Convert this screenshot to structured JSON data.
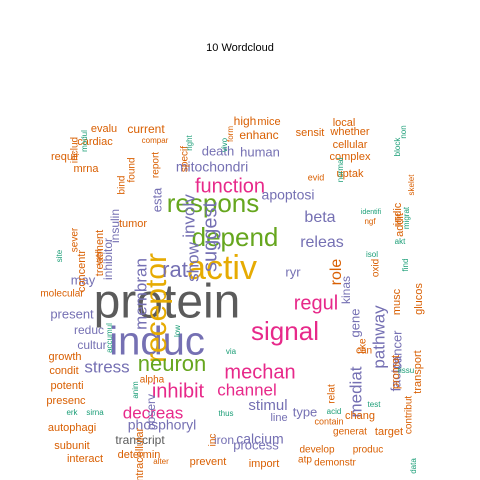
{
  "title": "10  Wordcloud",
  "colors": {
    "c1": "#5b5b5b",
    "c2": "#d95f02",
    "c3": "#7570b3",
    "c4": "#e7298a",
    "c5": "#66a61e",
    "c6": "#e6ab02",
    "c7": "#1b9e77",
    "c8": "#a6761d"
  },
  "words": [
    {
      "text": "protein",
      "size": 48,
      "color": "#5b5b5b"
    },
    {
      "text": "induc",
      "size": 40,
      "color": "#7570b3"
    },
    {
      "text": "activ",
      "size": 34,
      "color": "#e6ab02"
    },
    {
      "text": "receptor",
      "size": 30,
      "color": "#e6ab02"
    },
    {
      "text": "respons",
      "size": 26,
      "color": "#66a61e"
    },
    {
      "text": "depend",
      "size": 26,
      "color": "#66a61e"
    },
    {
      "text": "signal",
      "size": 26,
      "color": "#e7298a"
    },
    {
      "text": "neuron",
      "size": 22,
      "color": "#66a61e"
    },
    {
      "text": "rat",
      "size": 22,
      "color": "#7570b3"
    },
    {
      "text": "suggest",
      "size": 20,
      "color": "#7570b3"
    },
    {
      "text": "function",
      "size": 20,
      "color": "#e7298a"
    },
    {
      "text": "inhibit",
      "size": 20,
      "color": "#e7298a"
    },
    {
      "text": "mechan",
      "size": 20,
      "color": "#e7298a"
    },
    {
      "text": "regul",
      "size": 20,
      "color": "#e7298a"
    },
    {
      "text": "stress",
      "size": 17,
      "color": "#7570b3"
    },
    {
      "text": "decreas",
      "size": 17,
      "color": "#e7298a"
    },
    {
      "text": "channel",
      "size": 17,
      "color": "#e7298a"
    },
    {
      "text": "pathway",
      "size": 17,
      "color": "#7570b3"
    },
    {
      "text": "membran",
      "size": 17,
      "color": "#7570b3"
    },
    {
      "text": "mediat",
      "size": 17,
      "color": "#7570b3"
    },
    {
      "text": "show",
      "size": 17,
      "color": "#7570b3"
    },
    {
      "text": "involv",
      "size": 17,
      "color": "#7570b3"
    },
    {
      "text": "releas",
      "size": 16,
      "color": "#7570b3"
    },
    {
      "text": "beta",
      "size": 16,
      "color": "#7570b3"
    },
    {
      "text": "role",
      "size": 16,
      "color": "#d95f02"
    },
    {
      "text": "stimul",
      "size": 15,
      "color": "#7570b3"
    },
    {
      "text": "phosphoryl",
      "size": 14,
      "color": "#7570b3"
    },
    {
      "text": "mitochondri",
      "size": 14,
      "color": "#7570b3"
    },
    {
      "text": "apoptosi",
      "size": 14,
      "color": "#7570b3"
    },
    {
      "text": "factor",
      "size": 14,
      "color": "#7570b3"
    },
    {
      "text": "calcium",
      "size": 14,
      "color": "#7570b3"
    },
    {
      "text": "human",
      "size": 13,
      "color": "#7570b3"
    },
    {
      "text": "gene",
      "size": 13,
      "color": "#7570b3"
    },
    {
      "text": "present",
      "size": 13,
      "color": "#7570b3"
    },
    {
      "text": "may",
      "size": 13,
      "color": "#7570b3"
    },
    {
      "text": "death",
      "size": 13,
      "color": "#7570b3"
    },
    {
      "text": "cancer",
      "size": 13,
      "color": "#7570b3"
    },
    {
      "text": "process",
      "size": 13,
      "color": "#7570b3"
    },
    {
      "text": "type",
      "size": 13,
      "color": "#7570b3"
    },
    {
      "text": "ryr",
      "size": 13,
      "color": "#7570b3"
    },
    {
      "text": "inhibitor",
      "size": 12,
      "color": "#7570b3"
    },
    {
      "text": "insulin",
      "size": 12,
      "color": "#7570b3"
    },
    {
      "text": "esta",
      "size": 13,
      "color": "#7570b3"
    },
    {
      "text": "kinas",
      "size": 12,
      "color": "#7570b3"
    },
    {
      "text": "reduc",
      "size": 12,
      "color": "#7570b3"
    },
    {
      "text": "cultur",
      "size": 12,
      "color": "#7570b3"
    },
    {
      "text": "observ",
      "size": 12,
      "color": "#7570b3"
    },
    {
      "text": "transcript",
      "size": 12,
      "color": "#5b5b5b"
    },
    {
      "text": "enhanc",
      "size": 12,
      "color": "#d95f02"
    },
    {
      "text": "iron",
      "size": 12,
      "color": "#7570b3"
    },
    {
      "text": "line",
      "size": 11,
      "color": "#7570b3"
    },
    {
      "text": "prevent",
      "size": 11,
      "color": "#d95f02"
    },
    {
      "text": "import",
      "size": 11,
      "color": "#d95f02"
    },
    {
      "text": "develop",
      "size": 10,
      "color": "#d95f02"
    },
    {
      "text": "produc",
      "size": 10,
      "color": "#d95f02"
    },
    {
      "text": "determin",
      "size": 11,
      "color": "#d95f02"
    },
    {
      "text": "interact",
      "size": 11,
      "color": "#d95f02"
    },
    {
      "text": "subunit",
      "size": 11,
      "color": "#d95f02"
    },
    {
      "text": "autophagi",
      "size": 11,
      "color": "#d95f02"
    },
    {
      "text": "presenc",
      "size": 11,
      "color": "#d95f02"
    },
    {
      "text": "potenti",
      "size": 11,
      "color": "#d95f02"
    },
    {
      "text": "condit",
      "size": 11,
      "color": "#d95f02"
    },
    {
      "text": "growth",
      "size": 11,
      "color": "#d95f02"
    },
    {
      "text": "molecular",
      "size": 10,
      "color": "#d95f02"
    },
    {
      "text": "treatment",
      "size": 11,
      "color": "#d95f02"
    },
    {
      "text": "concentr",
      "size": 11,
      "color": "#d95f02"
    },
    {
      "text": "sever",
      "size": 10,
      "color": "#d95f02"
    },
    {
      "text": "mrna",
      "size": 11,
      "color": "#d95f02"
    },
    {
      "text": "requir",
      "size": 11,
      "color": "#d95f02"
    },
    {
      "text": "cardiac",
      "size": 11,
      "color": "#d95f02"
    },
    {
      "text": "evalu",
      "size": 11,
      "color": "#d95f02"
    },
    {
      "text": "includ",
      "size": 10,
      "color": "#d95f02"
    },
    {
      "text": "current",
      "size": 12,
      "color": "#d95f02"
    },
    {
      "text": "high",
      "size": 12,
      "color": "#d95f02"
    },
    {
      "text": "mice",
      "size": 11,
      "color": "#d95f02"
    },
    {
      "text": "local",
      "size": 11,
      "color": "#d95f02"
    },
    {
      "text": "whether",
      "size": 11,
      "color": "#d95f02"
    },
    {
      "text": "cellular",
      "size": 11,
      "color": "#d95f02"
    },
    {
      "text": "complex",
      "size": 11,
      "color": "#d95f02"
    },
    {
      "text": "uptak",
      "size": 11,
      "color": "#d95f02"
    },
    {
      "text": "sensit",
      "size": 11,
      "color": "#d95f02"
    },
    {
      "text": "transport",
      "size": 11,
      "color": "#d95f02"
    },
    {
      "text": "glucos",
      "size": 11,
      "color": "#d95f02"
    },
    {
      "text": "musc",
      "size": 11,
      "color": "#d95f02"
    },
    {
      "text": "promot",
      "size": 11,
      "color": "#d95f02"
    },
    {
      "text": "contribut",
      "size": 10,
      "color": "#d95f02"
    },
    {
      "text": "chang",
      "size": 11,
      "color": "#d95f02"
    },
    {
      "text": "target",
      "size": 11,
      "color": "#d95f02"
    },
    {
      "text": "generat",
      "size": 10,
      "color": "#d95f02"
    },
    {
      "text": "demonstr",
      "size": 10,
      "color": "#d95f02"
    },
    {
      "text": "intracellular",
      "size": 11,
      "color": "#d95f02"
    },
    {
      "text": "tumor",
      "size": 11,
      "color": "#d95f02"
    },
    {
      "text": "bind",
      "size": 10,
      "color": "#d95f02"
    },
    {
      "text": "found",
      "size": 10,
      "color": "#d95f02"
    },
    {
      "text": "report",
      "size": 10,
      "color": "#d95f02"
    },
    {
      "text": "specif",
      "size": 10,
      "color": "#d95f02"
    },
    {
      "text": "oxid",
      "size": 10,
      "color": "#d95f02"
    },
    {
      "text": "addit",
      "size": 11,
      "color": "#d95f02"
    },
    {
      "text": "indic",
      "size": 11,
      "color": "#d95f02"
    },
    {
      "text": "relat",
      "size": 10,
      "color": "#d95f02"
    },
    {
      "text": "can",
      "size": 10,
      "color": "#d95f02"
    },
    {
      "text": "like",
      "size": 10,
      "color": "#d95f02"
    },
    {
      "text": "evid",
      "size": 9,
      "color": "#d95f02"
    },
    {
      "text": "normal",
      "size": 8,
      "color": "#1b9e77"
    },
    {
      "text": "alpha",
      "size": 10,
      "color": "#d95f02"
    },
    {
      "text": "inc",
      "size": 10,
      "color": "#d95f02"
    },
    {
      "text": "atp",
      "size": 10,
      "color": "#d95f02"
    },
    {
      "text": "alter",
      "size": 8,
      "color": "#d95f02"
    },
    {
      "text": "contain",
      "size": 9,
      "color": "#d95f02"
    },
    {
      "text": "form",
      "size": 8,
      "color": "#d95f02"
    },
    {
      "text": "well",
      "size": 9,
      "color": "#d95f02"
    },
    {
      "text": "ngf",
      "size": 8,
      "color": "#d95f02"
    },
    {
      "text": "skelet",
      "size": 8,
      "color": "#d95f02"
    },
    {
      "text": "compar",
      "size": 8,
      "color": "#d95f02"
    },
    {
      "text": "right",
      "size": 8,
      "color": "#1b9e77"
    },
    {
      "text": "vivo",
      "size": 8,
      "color": "#1b9e77"
    },
    {
      "text": "modul",
      "size": 8,
      "color": "#1b9e77"
    },
    {
      "text": "site",
      "size": 8,
      "color": "#1b9e77"
    },
    {
      "text": "accumul",
      "size": 8,
      "color": "#1b9e77"
    },
    {
      "text": "low",
      "size": 8,
      "color": "#1b9e77"
    },
    {
      "text": "via",
      "size": 8,
      "color": "#1b9e77"
    },
    {
      "text": "anim",
      "size": 8,
      "color": "#1b9e77"
    },
    {
      "text": "erk",
      "size": 8,
      "color": "#1b9e77"
    },
    {
      "text": "sirna",
      "size": 8,
      "color": "#1b9e77"
    },
    {
      "text": "thus",
      "size": 8,
      "color": "#1b9e77"
    },
    {
      "text": "acid",
      "size": 8,
      "color": "#1b9e77"
    },
    {
      "text": "test",
      "size": 8,
      "color": "#1b9e77"
    },
    {
      "text": "tissu",
      "size": 8,
      "color": "#1b9e77"
    },
    {
      "text": "data",
      "size": 8,
      "color": "#1b9e77"
    },
    {
      "text": "identifi",
      "size": 7,
      "color": "#1b9e77"
    },
    {
      "text": "isol",
      "size": 8,
      "color": "#1b9e77"
    },
    {
      "text": "akt",
      "size": 8,
      "color": "#1b9e77"
    },
    {
      "text": "find",
      "size": 8,
      "color": "#1b9e77"
    },
    {
      "text": "migrat",
      "size": 8,
      "color": "#1b9e77"
    },
    {
      "text": "block",
      "size": 8,
      "color": "#1b9e77"
    },
    {
      "text": "non",
      "size": 8,
      "color": "#1b9e77"
    },
    {
      "text": "direct",
      "size": 8,
      "color": "#1b9e77"
    }
  ]
}
